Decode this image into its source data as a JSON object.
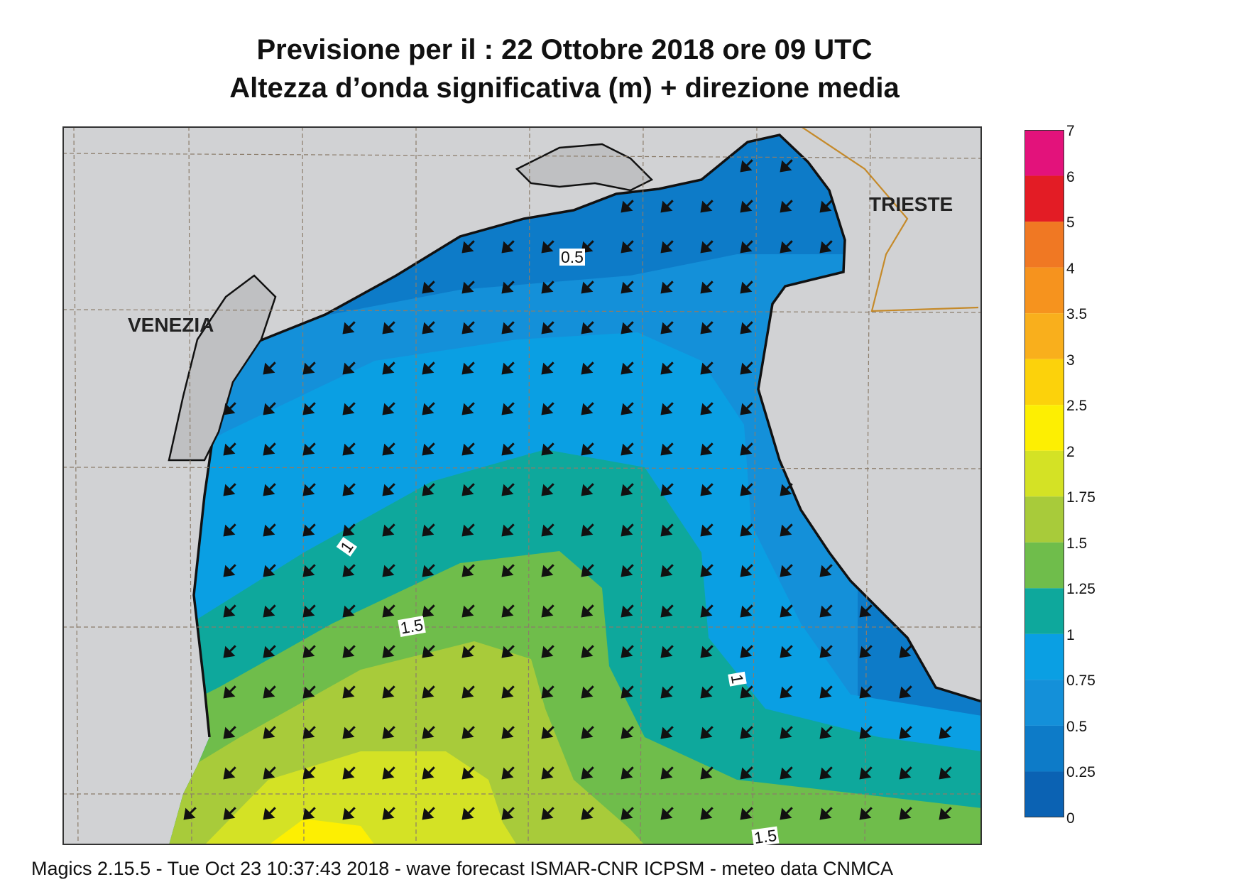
{
  "title": {
    "line1": "Previsione per il  :  22  Ottobre  2018   ore 09 UTC",
    "line2": "Altezza d’onda significativa (m) + direzione media"
  },
  "map": {
    "cities": [
      "VENEZIA",
      "TRIESTE"
    ],
    "contour_labels": [
      "0.5",
      "1",
      "1.5",
      "1",
      "1.5"
    ],
    "land_color": "#d1d2d4",
    "coast_color": "#111111",
    "border_color": "#c58a2a"
  },
  "legend": {
    "labels": [
      "7",
      "6",
      "5",
      "4",
      "3.5",
      "3",
      "2.5",
      "2",
      "1.75",
      "1.5",
      "1.25",
      "1",
      "0.75",
      "0.5",
      "0.25",
      "0"
    ],
    "colors": [
      "#e3127b",
      "#e31c25",
      "#f07823",
      "#f6931e",
      "#f9af1c",
      "#fcd20b",
      "#fdef02",
      "#d4e225",
      "#a8cb3a",
      "#6fbd4b",
      "#0ea89c",
      "#0a9fe3",
      "#1490d9",
      "#0d7bc8",
      "#0b62b3"
    ]
  },
  "footer": "Magics 2.15.5 - Tue Oct 23 10:37:43 2018 - wave forecast  ISMAR-CNR  ICPSM - meteo data   CNMCA"
}
